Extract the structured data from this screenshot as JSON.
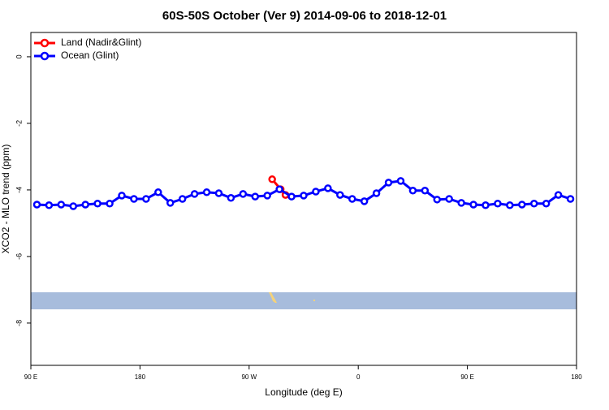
{
  "chart_data": {
    "type": "line",
    "title": "60S-50S October (Ver 9)   2014-09-06 to 2018-12-01",
    "xlabel": "Longitude (deg E)",
    "ylabel": "XCO2 - MLO trend (ppm)",
    "xlim": [
      90,
      540
    ],
    "ylim": [
      -9.27,
      0.73
    ],
    "xticks": [
      {
        "value": 90,
        "label": "90 E"
      },
      180,
      {
        "value": 270,
        "label": "90 W"
      },
      {
        "value": 360,
        "label": "0"
      },
      {
        "value": 450,
        "label": "90 E"
      },
      {
        "value": 540,
        "label": "180"
      }
    ],
    "yticks": [
      0,
      -2,
      -4,
      -6,
      -8
    ],
    "legend": "top-left",
    "series": [
      {
        "name": "Land (Nadir&Glint)",
        "color": "#ff0000",
        "x": [
          289,
          296,
          300
        ],
        "values": [
          -3.68,
          -3.98,
          -4.15
        ]
      },
      {
        "name": "Ocean (Glint)",
        "color": "#0000ff",
        "x": [
          95,
          105,
          115,
          125,
          135,
          145,
          155,
          165,
          175,
          185,
          195,
          205,
          215,
          225,
          235,
          245,
          255,
          265,
          275,
          285,
          295,
          305,
          315,
          325,
          335,
          345,
          355,
          365,
          375,
          385,
          395,
          405,
          415,
          425,
          435,
          445,
          455,
          465,
          475,
          485,
          495,
          505,
          515,
          525,
          535
        ],
        "values": [
          -4.44,
          -4.46,
          -4.44,
          -4.49,
          -4.44,
          -4.41,
          -4.41,
          -4.17,
          -4.27,
          -4.27,
          -4.07,
          -4.39,
          -4.27,
          -4.12,
          -4.07,
          -4.1,
          -4.24,
          -4.12,
          -4.2,
          -4.17,
          -3.98,
          -4.2,
          -4.17,
          -4.05,
          -3.95,
          -4.15,
          -4.27,
          -4.34,
          -4.1,
          -3.78,
          -3.73,
          -4.02,
          -4.02,
          -4.29,
          -4.27,
          -4.39,
          -4.44,
          -4.46,
          -4.41,
          -4.46,
          -4.44,
          -4.41,
          -4.41,
          -4.15,
          -4.27
        ]
      }
    ]
  }
}
